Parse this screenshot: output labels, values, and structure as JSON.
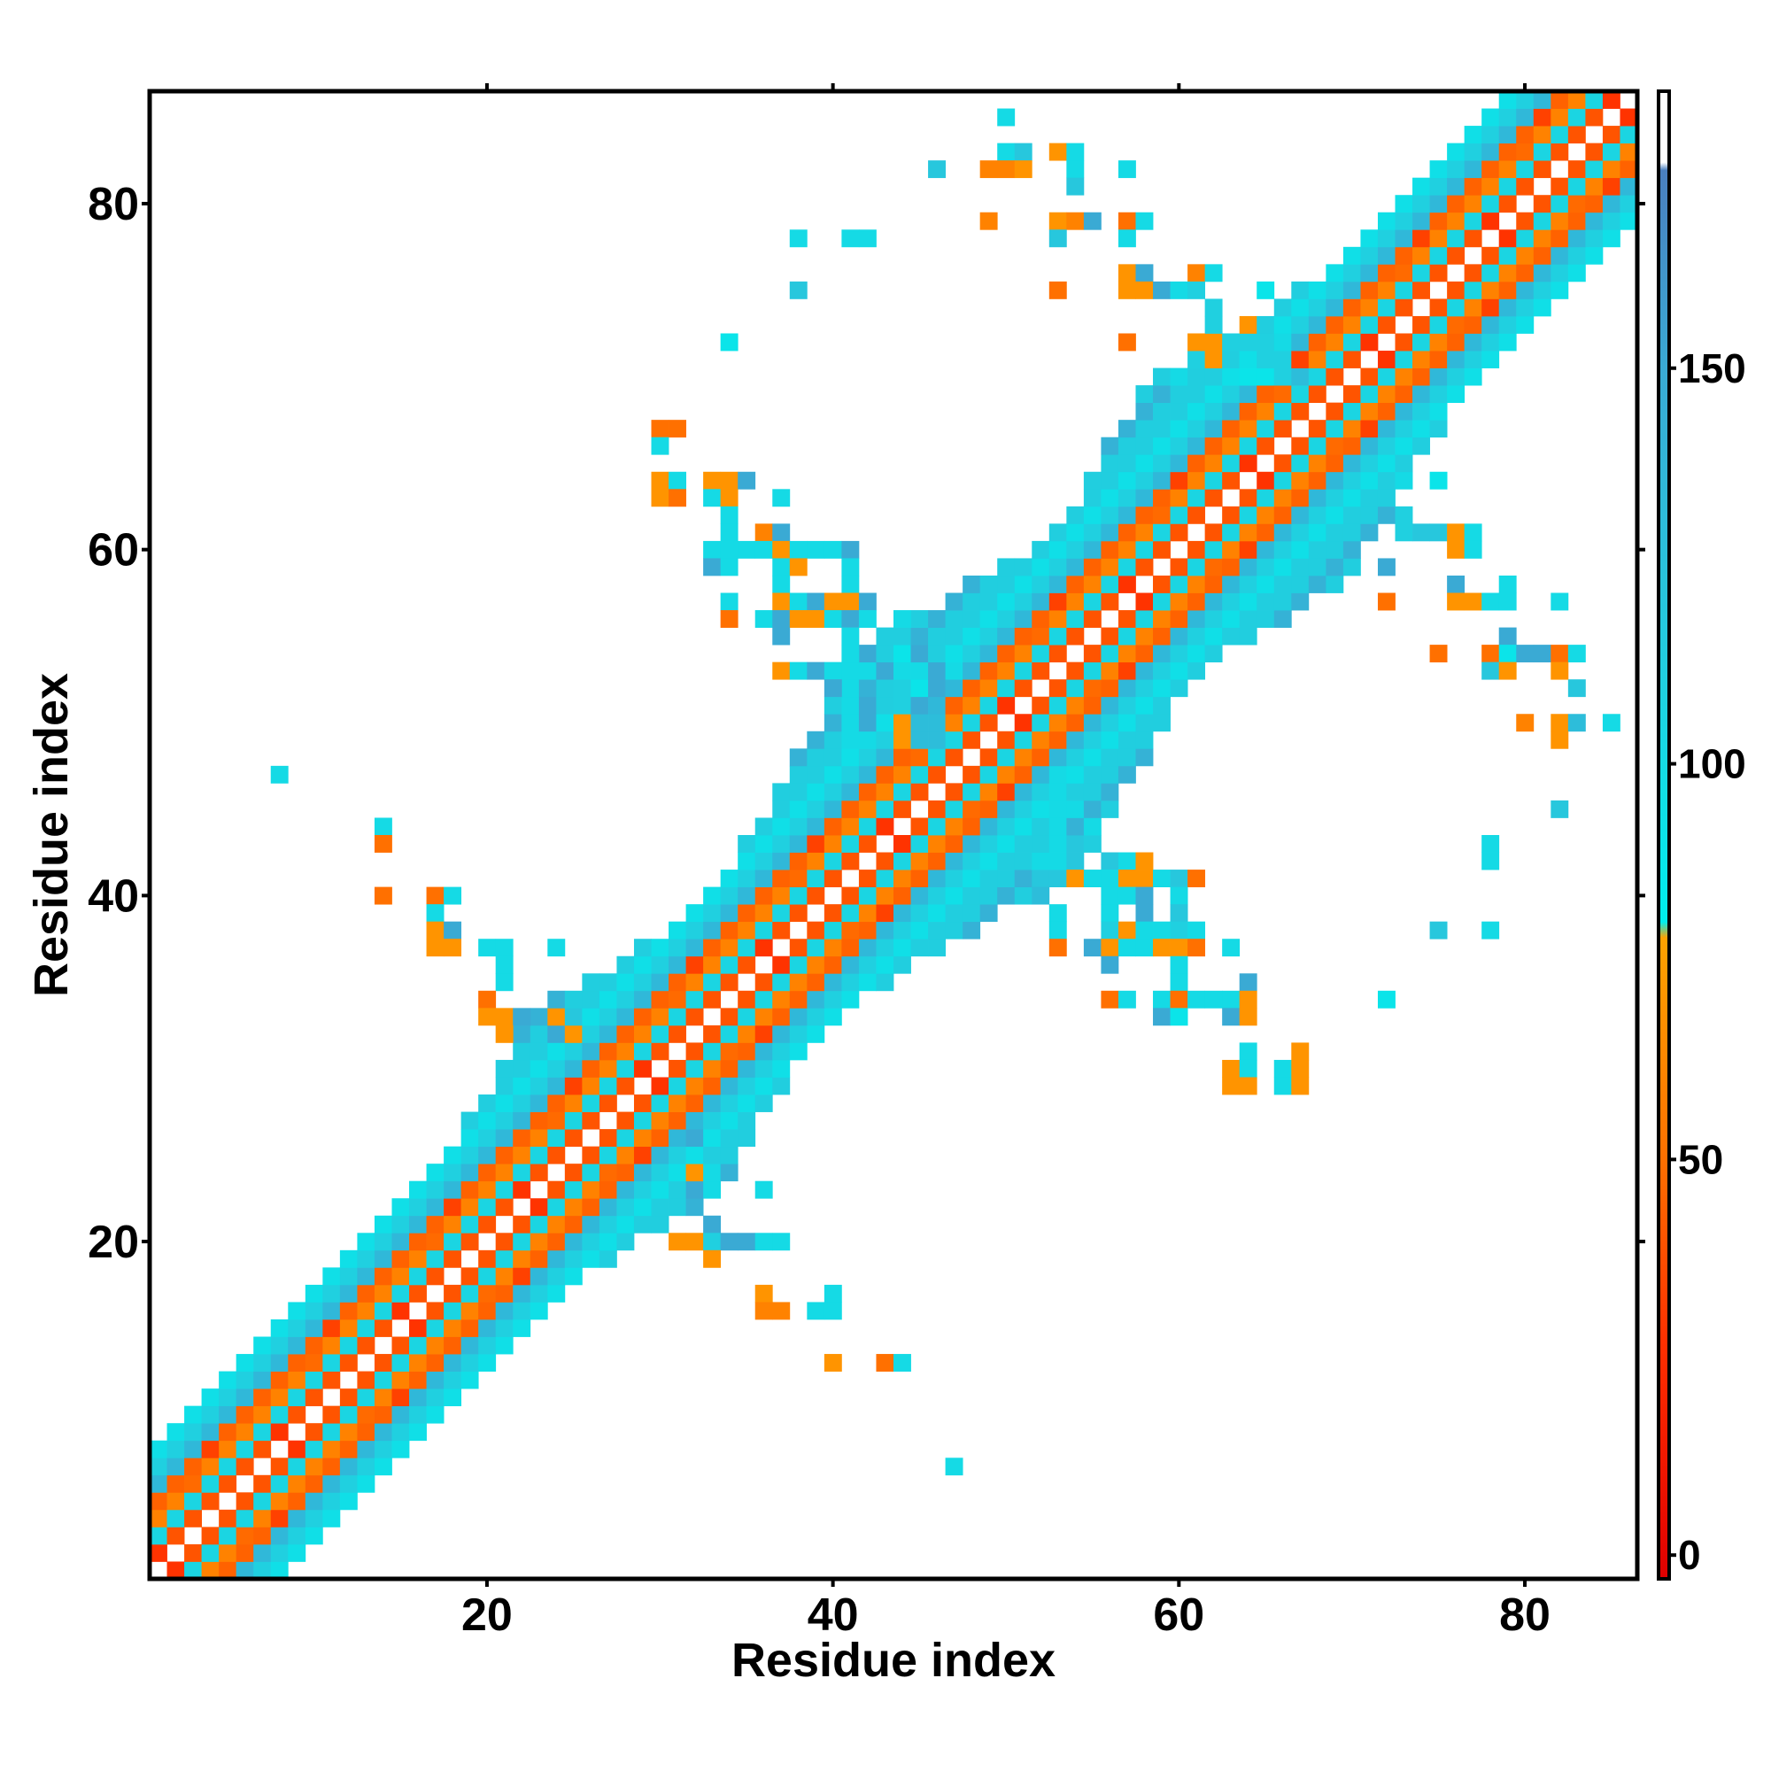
{
  "chart_data": {
    "type": "heatmap",
    "title": "",
    "xlabel": "Residue index",
    "ylabel": "Residue index",
    "xlim": [
      0.5,
      86.5
    ],
    "ylim": [
      0.5,
      86.5
    ],
    "xticks": [
      20,
      40,
      60,
      80
    ],
    "yticks": [
      20,
      40,
      60,
      80
    ],
    "grid": false,
    "colorbar": {
      "range": [
        -3,
        185
      ],
      "ticks": [
        0,
        50,
        100,
        150
      ],
      "stops": [
        {
          "value": -3,
          "color": "#e00000"
        },
        {
          "value": 27,
          "color": "#ff3000"
        },
        {
          "value": 50,
          "color": "#ff7000"
        },
        {
          "value": 78,
          "color": "#ffa200"
        },
        {
          "value": 80,
          "color": "#00eeee"
        },
        {
          "value": 110,
          "color": "#20d0e0"
        },
        {
          "value": 150,
          "color": "#3aaad4"
        },
        {
          "value": 175,
          "color": "#4a7fbf"
        },
        {
          "value": 176,
          "color": "#ffffff"
        },
        {
          "value": 185,
          "color": "#ffffff"
        }
      ]
    },
    "band": {
      "pattern": [
        {
          "offset": 1,
          "value": 40
        },
        {
          "offset": 2,
          "value": 105
        },
        {
          "offset": 3,
          "value": 60
        },
        {
          "offset": 4,
          "value": 45
        },
        {
          "offset": 5,
          "value": 105
        },
        {
          "offset": 6,
          "value": 110
        },
        {
          "offset": 7,
          "value": 95
        },
        {
          "offset": 8,
          "value": 112
        }
      ],
      "bulges": [
        {
          "center": 28,
          "extra": 3
        },
        {
          "center": 48,
          "extra": 5
        },
        {
          "center": 64,
          "extra": 4
        }
      ]
    },
    "points": [
      [
        50,
        85,
        100
      ],
      [
        50,
        83,
        100
      ],
      [
        51,
        83,
        120
      ],
      [
        53,
        83,
        70
      ],
      [
        54,
        83,
        100
      ],
      [
        46,
        82,
        120
      ],
      [
        49,
        82,
        60
      ],
      [
        50,
        82,
        60
      ],
      [
        51,
        82,
        70
      ],
      [
        54,
        82,
        100
      ],
      [
        57,
        82,
        100
      ],
      [
        54,
        81,
        120
      ],
      [
        49,
        79,
        60
      ],
      [
        53,
        79,
        70
      ],
      [
        54,
        79,
        60
      ],
      [
        55,
        79,
        150
      ],
      [
        57,
        79,
        50
      ],
      [
        58,
        79,
        100
      ],
      [
        38,
        78,
        100
      ],
      [
        41,
        78,
        100
      ],
      [
        42,
        78,
        100
      ],
      [
        53,
        78,
        120
      ],
      [
        57,
        78,
        100
      ],
      [
        57,
        76,
        70
      ],
      [
        58,
        76,
        150
      ],
      [
        61,
        76,
        60
      ],
      [
        62,
        76,
        100
      ],
      [
        38,
        75,
        120
      ],
      [
        53,
        75,
        50
      ],
      [
        57,
        75,
        70
      ],
      [
        58,
        75,
        70
      ],
      [
        59,
        75,
        150
      ],
      [
        60,
        75,
        100
      ],
      [
        61,
        75,
        110
      ],
      [
        65,
        75,
        90
      ],
      [
        62,
        74,
        110
      ],
      [
        62,
        73,
        110
      ],
      [
        64,
        73,
        70
      ],
      [
        34,
        72,
        90
      ],
      [
        57,
        72,
        50
      ],
      [
        61,
        72,
        70
      ],
      [
        62,
        72,
        70
      ],
      [
        63,
        72,
        110
      ],
      [
        64,
        72,
        110
      ],
      [
        65,
        72,
        110
      ],
      [
        66,
        72,
        100
      ],
      [
        61,
        71,
        110
      ],
      [
        62,
        71,
        70
      ],
      [
        65,
        71,
        110
      ],
      [
        66,
        71,
        110
      ],
      [
        60,
        70,
        100
      ],
      [
        64,
        70,
        90
      ],
      [
        65,
        70,
        90
      ],
      [
        66,
        70,
        110
      ],
      [
        67,
        70,
        130
      ],
      [
        30,
        67,
        50
      ],
      [
        31,
        67,
        50
      ],
      [
        30,
        66,
        100
      ],
      [
        30,
        64,
        70
      ],
      [
        31,
        64,
        100
      ],
      [
        33,
        64,
        70
      ],
      [
        34,
        64,
        70
      ],
      [
        35,
        64,
        150
      ],
      [
        30,
        63,
        70
      ],
      [
        31,
        63,
        50
      ],
      [
        33,
        63,
        100
      ],
      [
        34,
        63,
        70
      ],
      [
        37,
        63,
        100
      ],
      [
        34,
        62,
        100
      ],
      [
        34,
        61,
        100
      ],
      [
        36,
        61,
        60
      ],
      [
        37,
        61,
        150
      ],
      [
        33,
        60,
        100
      ],
      [
        34,
        60,
        100
      ],
      [
        35,
        60,
        100
      ],
      [
        36,
        60,
        100
      ],
      [
        37,
        60,
        70
      ],
      [
        38,
        60,
        100
      ],
      [
        39,
        60,
        100
      ],
      [
        40,
        60,
        100
      ],
      [
        41,
        60,
        150
      ],
      [
        33,
        59,
        150
      ],
      [
        34,
        59,
        100
      ],
      [
        37,
        59,
        100
      ],
      [
        38,
        59,
        70
      ],
      [
        41,
        59,
        100
      ],
      [
        37,
        58,
        100
      ],
      [
        41,
        58,
        100
      ],
      [
        34,
        57,
        100
      ],
      [
        37,
        57,
        70
      ],
      [
        38,
        57,
        100
      ],
      [
        39,
        57,
        150
      ],
      [
        40,
        57,
        70
      ],
      [
        41,
        57,
        70
      ],
      [
        42,
        57,
        150
      ],
      [
        34,
        56,
        50
      ],
      [
        36,
        56,
        100
      ],
      [
        37,
        56,
        150
      ],
      [
        38,
        56,
        70
      ],
      [
        39,
        56,
        70
      ],
      [
        40,
        56,
        100
      ],
      [
        41,
        56,
        150
      ],
      [
        42,
        56,
        100
      ],
      [
        44,
        56,
        100
      ],
      [
        37,
        55,
        150
      ],
      [
        41,
        55,
        100
      ],
      [
        41,
        54,
        100
      ],
      [
        42,
        54,
        150
      ],
      [
        44,
        54,
        90
      ],
      [
        45,
        54,
        150
      ],
      [
        37,
        53,
        70
      ],
      [
        38,
        53,
        100
      ],
      [
        39,
        53,
        150
      ],
      [
        40,
        53,
        100
      ],
      [
        41,
        53,
        100
      ],
      [
        42,
        53,
        100
      ],
      [
        43,
        53,
        150
      ],
      [
        44,
        53,
        100
      ],
      [
        45,
        53,
        100
      ],
      [
        46,
        53,
        150
      ],
      [
        47,
        53,
        100
      ],
      [
        40,
        52,
        150
      ],
      [
        41,
        52,
        100
      ],
      [
        44,
        52,
        110
      ],
      [
        45,
        52,
        90
      ],
      [
        46,
        52,
        150
      ],
      [
        41,
        51,
        100
      ],
      [
        42,
        51,
        150
      ],
      [
        44,
        51,
        110
      ],
      [
        45,
        51,
        150
      ],
      [
        41,
        50,
        100
      ],
      [
        42,
        50,
        150
      ],
      [
        44,
        50,
        70
      ],
      [
        45,
        50,
        130
      ],
      [
        46,
        50,
        130
      ],
      [
        41,
        49,
        100
      ],
      [
        42,
        49,
        100
      ],
      [
        44,
        49,
        70
      ],
      [
        45,
        49,
        130
      ],
      [
        46,
        49,
        130
      ],
      [
        8,
        47,
        100
      ],
      [
        53,
        47,
        100
      ],
      [
        53,
        46,
        100
      ],
      [
        53,
        45,
        100
      ],
      [
        54,
        45,
        100
      ],
      [
        53,
        44,
        100
      ],
      [
        55,
        44,
        100
      ],
      [
        53,
        43,
        100
      ],
      [
        54,
        43,
        120
      ],
      [
        14,
        44,
        100
      ],
      [
        14,
        43,
        50
      ],
      [
        52,
        42,
        100
      ],
      [
        53,
        42,
        100
      ],
      [
        54,
        42,
        120
      ],
      [
        56,
        42,
        120
      ],
      [
        57,
        42,
        100
      ],
      [
        58,
        42,
        70
      ],
      [
        52,
        41,
        120
      ],
      [
        53,
        41,
        120
      ],
      [
        54,
        41,
        70
      ],
      [
        55,
        41,
        100
      ],
      [
        56,
        41,
        100
      ],
      [
        57,
        41,
        70
      ],
      [
        58,
        41,
        70
      ],
      [
        59,
        41,
        100
      ],
      [
        60,
        41,
        120
      ],
      [
        61,
        41,
        50
      ],
      [
        14,
        40,
        50
      ],
      [
        17,
        40,
        50
      ],
      [
        18,
        40,
        100
      ],
      [
        52,
        40,
        130
      ],
      [
        56,
        40,
        100
      ],
      [
        57,
        40,
        100
      ],
      [
        58,
        40,
        150
      ],
      [
        60,
        40,
        100
      ],
      [
        17,
        39,
        100
      ],
      [
        53,
        39,
        100
      ],
      [
        56,
        39,
        100
      ],
      [
        58,
        39,
        150
      ],
      [
        60,
        39,
        120
      ],
      [
        17,
        38,
        70
      ],
      [
        18,
        38,
        150
      ],
      [
        53,
        38,
        100
      ],
      [
        56,
        38,
        110
      ],
      [
        57,
        38,
        70
      ],
      [
        58,
        38,
        100
      ],
      [
        59,
        38,
        100
      ],
      [
        60,
        38,
        110
      ],
      [
        61,
        38,
        100
      ],
      [
        17,
        37,
        70
      ],
      [
        18,
        37,
        70
      ],
      [
        20,
        37,
        100
      ],
      [
        21,
        37,
        100
      ],
      [
        24,
        37,
        100
      ],
      [
        53,
        37,
        50
      ],
      [
        55,
        37,
        150
      ],
      [
        56,
        37,
        70
      ],
      [
        57,
        37,
        100
      ],
      [
        58,
        37,
        100
      ],
      [
        59,
        37,
        70
      ],
      [
        60,
        37,
        70
      ],
      [
        61,
        37,
        50
      ],
      [
        63,
        37,
        100
      ],
      [
        21,
        36,
        100
      ],
      [
        56,
        36,
        150
      ],
      [
        60,
        36,
        100
      ],
      [
        21,
        35,
        100
      ],
      [
        60,
        35,
        100
      ],
      [
        64,
        35,
        150
      ],
      [
        20,
        34,
        50
      ],
      [
        56,
        34,
        50
      ],
      [
        57,
        34,
        100
      ],
      [
        59,
        34,
        100
      ],
      [
        60,
        34,
        50
      ],
      [
        61,
        34,
        100
      ],
      [
        62,
        34,
        100
      ],
      [
        63,
        34,
        100
      ],
      [
        64,
        34,
        70
      ],
      [
        72,
        34,
        90
      ],
      [
        20,
        33,
        70
      ],
      [
        21,
        33,
        70
      ],
      [
        22,
        33,
        150
      ],
      [
        24,
        33,
        70
      ],
      [
        25,
        33,
        120
      ],
      [
        59,
        33,
        150
      ],
      [
        60,
        33,
        90
      ],
      [
        63,
        33,
        150
      ],
      [
        64,
        33,
        70
      ],
      [
        21,
        32,
        70
      ],
      [
        24,
        32,
        150
      ],
      [
        25,
        32,
        70
      ],
      [
        64,
        31,
        100
      ],
      [
        67,
        31,
        70
      ],
      [
        63,
        30,
        70
      ],
      [
        64,
        30,
        100
      ],
      [
        66,
        30,
        100
      ],
      [
        67,
        30,
        70
      ],
      [
        63,
        29,
        70
      ],
      [
        64,
        29,
        70
      ],
      [
        66,
        29,
        100
      ],
      [
        67,
        29,
        70
      ],
      [
        32,
        26,
        150
      ],
      [
        32,
        24,
        70
      ],
      [
        33,
        24,
        100
      ],
      [
        32,
        23,
        150
      ],
      [
        33,
        23,
        100
      ],
      [
        36,
        23,
        100
      ],
      [
        33,
        21,
        150
      ],
      [
        31,
        20,
        70
      ],
      [
        32,
        20,
        70
      ],
      [
        33,
        20,
        110
      ],
      [
        34,
        20,
        150
      ],
      [
        35,
        20,
        150
      ],
      [
        36,
        20,
        100
      ],
      [
        37,
        20,
        100
      ],
      [
        33,
        19,
        70
      ],
      [
        36,
        17,
        70
      ],
      [
        36,
        16,
        60
      ],
      [
        37,
        16,
        60
      ],
      [
        39,
        16,
        100
      ],
      [
        40,
        16,
        100
      ],
      [
        40,
        17,
        100
      ],
      [
        40,
        13,
        70
      ],
      [
        43,
        13,
        50
      ],
      [
        44,
        13,
        100
      ],
      [
        47,
        7,
        100
      ],
      [
        73,
        64,
        100
      ],
      [
        75,
        64,
        90
      ],
      [
        73,
        62,
        110
      ],
      [
        73,
        61,
        110
      ],
      [
        74,
        61,
        120
      ],
      [
        75,
        61,
        120
      ],
      [
        76,
        61,
        70
      ],
      [
        77,
        61,
        100
      ],
      [
        76,
        60,
        70
      ],
      [
        77,
        60,
        100
      ],
      [
        72,
        59,
        150
      ],
      [
        76,
        58,
        150
      ],
      [
        79,
        58,
        100
      ],
      [
        72,
        57,
        50
      ],
      [
        76,
        57,
        70
      ],
      [
        77,
        57,
        70
      ],
      [
        78,
        57,
        100
      ],
      [
        79,
        57,
        100
      ],
      [
        82,
        57,
        100
      ],
      [
        79,
        55,
        150
      ],
      [
        75,
        54,
        50
      ],
      [
        78,
        54,
        50
      ],
      [
        79,
        54,
        90
      ],
      [
        80,
        54,
        150
      ],
      [
        81,
        54,
        150
      ],
      [
        82,
        54,
        50
      ],
      [
        83,
        54,
        100
      ],
      [
        78,
        53,
        120
      ],
      [
        79,
        53,
        70
      ],
      [
        82,
        53,
        70
      ],
      [
        83,
        52,
        120
      ],
      [
        80,
        50,
        60
      ],
      [
        82,
        50,
        70
      ],
      [
        83,
        50,
        130
      ],
      [
        85,
        50,
        100
      ],
      [
        82,
        49,
        70
      ],
      [
        82,
        45,
        120
      ],
      [
        78,
        43,
        100
      ],
      [
        78,
        42,
        100
      ],
      [
        75,
        38,
        120
      ],
      [
        78,
        38,
        100
      ]
    ]
  }
}
